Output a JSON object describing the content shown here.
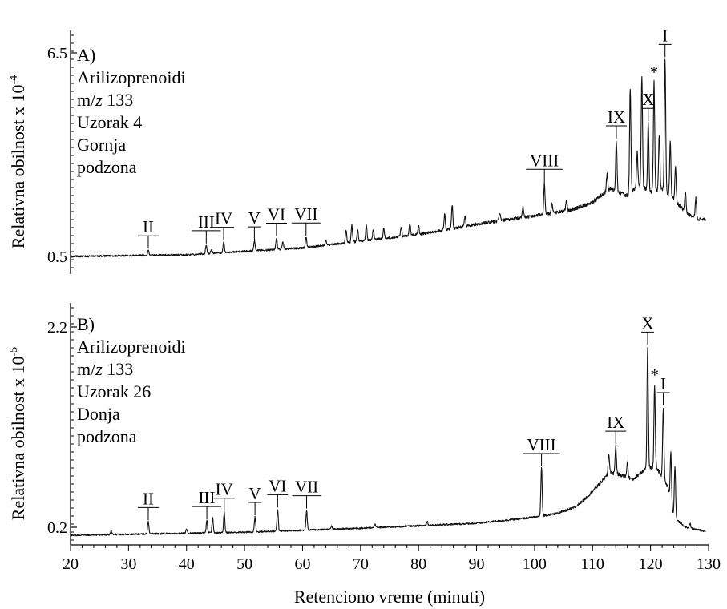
{
  "chart_data": {
    "type": "line",
    "x_axis": {
      "label": "Retenciono vreme (minuti)",
      "range": [
        20,
        130
      ],
      "ticks": [
        20,
        30,
        40,
        50,
        60,
        70,
        80,
        90,
        100,
        110,
        120,
        130
      ],
      "tick_labels": [
        "20",
        "30",
        "40",
        "50",
        "60",
        "70",
        "80",
        "90",
        "100",
        "110",
        "120",
        "130"
      ]
    },
    "panels": [
      {
        "id": "A",
        "text_lines": [
          "A)",
          "Arilizoprenoidi",
          "m/z 133",
          "Uzorak 4",
          "Gornja",
          "podzona"
        ],
        "ylabel_main": "Relativna obilnost x 10",
        "ylabel_exp": "-4",
        "y_tick_labels": [
          "6.5",
          "0.5"
        ],
        "ylim": [
          0.5,
          6.5
        ],
        "baseline": 0.5,
        "background": [
          [
            20,
            0.5
          ],
          [
            40,
            0.55
          ],
          [
            60,
            0.75
          ],
          [
            70,
            0.95
          ],
          [
            80,
            1.15
          ],
          [
            90,
            1.45
          ],
          [
            100,
            1.7
          ],
          [
            106,
            1.85
          ],
          [
            110,
            2.1
          ],
          [
            113,
            2.5
          ],
          [
            116,
            2.3
          ],
          [
            118,
            2.6
          ],
          [
            120,
            2.4
          ],
          [
            122,
            2.5
          ],
          [
            124,
            2.2
          ],
          [
            126,
            1.8
          ],
          [
            128,
            1.6
          ],
          [
            129.5,
            1.6
          ]
        ],
        "peaks": [
          {
            "x": 33.4,
            "h": 0.15
          },
          {
            "x": 43.4,
            "h": 0.25
          },
          {
            "x": 44.3,
            "h": 0.12
          },
          {
            "x": 46.4,
            "h": 0.32
          },
          {
            "x": 51.7,
            "h": 0.28
          },
          {
            "x": 55.5,
            "h": 0.35
          },
          {
            "x": 56.6,
            "h": 0.22
          },
          {
            "x": 60.6,
            "h": 0.3
          },
          {
            "x": 64,
            "h": 0.15
          },
          {
            "x": 67.5,
            "h": 0.4
          },
          {
            "x": 68.5,
            "h": 0.5
          },
          {
            "x": 69.5,
            "h": 0.35
          },
          {
            "x": 71,
            "h": 0.45
          },
          {
            "x": 72.2,
            "h": 0.3
          },
          {
            "x": 74,
            "h": 0.3
          },
          {
            "x": 77,
            "h": 0.25
          },
          {
            "x": 78.5,
            "h": 0.35
          },
          {
            "x": 80,
            "h": 0.25
          },
          {
            "x": 84.5,
            "h": 0.45
          },
          {
            "x": 85.8,
            "h": 0.7
          },
          {
            "x": 88,
            "h": 0.3
          },
          {
            "x": 94,
            "h": 0.25
          },
          {
            "x": 98,
            "h": 0.3
          },
          {
            "x": 101.7,
            "h": 0.9
          },
          {
            "x": 103,
            "h": 0.3
          },
          {
            "x": 105.5,
            "h": 0.35
          },
          {
            "x": 112.5,
            "h": 0.5
          },
          {
            "x": 114.1,
            "h": 1.5
          },
          {
            "x": 116.5,
            "h": 3.1
          },
          {
            "x": 117.7,
            "h": 1.0
          },
          {
            "x": 118.5,
            "h": 3.3
          },
          {
            "x": 119.6,
            "h": 2.0
          },
          {
            "x": 120.6,
            "h": 3.2
          },
          {
            "x": 121.5,
            "h": 1.6
          },
          {
            "x": 122.5,
            "h": 3.9
          },
          {
            "x": 123.4,
            "h": 1.6
          },
          {
            "x": 124.3,
            "h": 1.0
          },
          {
            "x": 126,
            "h": 0.6
          },
          {
            "x": 127.8,
            "h": 0.6
          }
        ],
        "peak_labels": [
          {
            "text": "II",
            "x": 33.4
          },
          {
            "text": "III",
            "x": 43.4
          },
          {
            "text": "IV",
            "x": 46.4
          },
          {
            "text": "V",
            "x": 51.7
          },
          {
            "text": "VI",
            "x": 55.5
          },
          {
            "text": "VII",
            "x": 60.6
          },
          {
            "text": "VIII",
            "x": 101.7
          },
          {
            "text": "IX",
            "x": 114.1
          },
          {
            "text": "X",
            "x": 119.6
          },
          {
            "text": "*",
            "x": 120.6
          },
          {
            "text": "I",
            "x": 122.5
          }
        ]
      },
      {
        "id": "B",
        "text_lines": [
          "B)",
          "Arilizoprenoidi",
          "m/z 133",
          "Uzorak 26",
          "Donja",
          "podzona"
        ],
        "ylabel_main": "Relativna obilnost  x 10",
        "ylabel_exp": "-5",
        "y_tick_labels": [
          "2.2",
          "0.2"
        ],
        "ylim": [
          0.2,
          2.2
        ],
        "baseline": 0.2,
        "background": [
          [
            20,
            0.12
          ],
          [
            50,
            0.15
          ],
          [
            70,
            0.19
          ],
          [
            90,
            0.24
          ],
          [
            100,
            0.3
          ],
          [
            104,
            0.34
          ],
          [
            107,
            0.4
          ],
          [
            109,
            0.5
          ],
          [
            111,
            0.62
          ],
          [
            113,
            0.75
          ],
          [
            115,
            0.72
          ],
          [
            117,
            0.68
          ],
          [
            119,
            0.78
          ],
          [
            121,
            0.8
          ],
          [
            123,
            0.6
          ],
          [
            124,
            0.3
          ],
          [
            126,
            0.2
          ],
          [
            129.5,
            0.16
          ]
        ],
        "peaks": [
          {
            "x": 27,
            "h": 0.04
          },
          {
            "x": 33.4,
            "h": 0.12
          },
          {
            "x": 40,
            "h": 0.04
          },
          {
            "x": 43.5,
            "h": 0.12
          },
          {
            "x": 44.5,
            "h": 0.15
          },
          {
            "x": 46.5,
            "h": 0.2
          },
          {
            "x": 51.8,
            "h": 0.15
          },
          {
            "x": 55.7,
            "h": 0.22
          },
          {
            "x": 60.7,
            "h": 0.2
          },
          {
            "x": 65,
            "h": 0.03
          },
          {
            "x": 72.5,
            "h": 0.04
          },
          {
            "x": 81.5,
            "h": 0.04
          },
          {
            "x": 101.2,
            "h": 0.48
          },
          {
            "x": 112.8,
            "h": 0.2
          },
          {
            "x": 114,
            "h": 0.28
          },
          {
            "x": 116,
            "h": 0.15
          },
          {
            "x": 119.5,
            "h": 1.22
          },
          {
            "x": 120.7,
            "h": 0.82
          },
          {
            "x": 122.2,
            "h": 0.72
          },
          {
            "x": 123.5,
            "h": 0.5
          },
          {
            "x": 124.2,
            "h": 0.52
          },
          {
            "x": 126.8,
            "h": 0.05
          }
        ],
        "peak_labels": [
          {
            "text": "II",
            "x": 33.4
          },
          {
            "text": "III",
            "x": 43.5
          },
          {
            "text": "IV",
            "x": 46.5
          },
          {
            "text": "V",
            "x": 51.8
          },
          {
            "text": "VI",
            "x": 55.7
          },
          {
            "text": "VII",
            "x": 60.7
          },
          {
            "text": "VIII",
            "x": 101.2
          },
          {
            "text": "IX",
            "x": 114
          },
          {
            "text": "X",
            "x": 119.5
          },
          {
            "text": "*",
            "x": 120.7
          },
          {
            "text": "I",
            "x": 122.2
          }
        ]
      }
    ]
  }
}
